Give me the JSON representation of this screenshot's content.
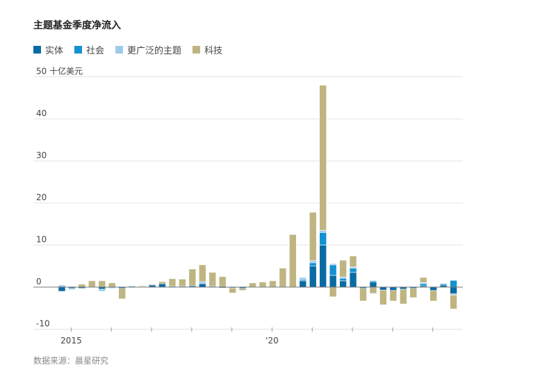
{
  "chart_data": {
    "type": "bar",
    "stacked": true,
    "title": "主题基金季度净流入",
    "unit_label": "十亿美元",
    "source": "数据来源：晨星研究",
    "ylim": [
      -10,
      50
    ],
    "yticks": [
      -10,
      0,
      10,
      20,
      30,
      40,
      50
    ],
    "xtick_labels": [
      {
        "index": 1,
        "label": "2015"
      },
      {
        "index": 21,
        "label": "'20"
      }
    ],
    "colors": {
      "实体": "#0a6ba3",
      "社会": "#1591d3",
      "更广泛的主题": "#9ccbea",
      "科技": "#bfb582"
    },
    "series": [
      {
        "name": "实体",
        "values": [
          -1.0,
          -0.3,
          -0.3,
          0,
          -0.5,
          0,
          -0.3,
          0.2,
          0.1,
          0.5,
          0.8,
          0.2,
          0.2,
          0.3,
          0.8,
          0.2,
          -0.2,
          -0.2,
          -0.3,
          0,
          0,
          0,
          0,
          0,
          1.5,
          5.0,
          10.0,
          2.8,
          1.5,
          3.5,
          -0.3,
          1.2,
          -0.7,
          -0.8,
          -0.5,
          -0.3,
          0.3,
          -0.8,
          0.5,
          -1.6
        ]
      },
      {
        "name": "社会",
        "values": [
          0,
          0,
          0,
          0,
          0,
          0,
          0,
          0,
          0,
          0,
          0,
          0,
          0,
          0,
          0,
          0,
          0,
          0,
          0,
          0,
          0,
          0,
          0,
          0,
          0.3,
          0.8,
          3.0,
          2.5,
          0.6,
          1.0,
          0,
          0.3,
          0,
          0,
          0,
          0,
          0.5,
          0,
          0.3,
          1.6
        ]
      },
      {
        "name": "更广泛的主题",
        "values": [
          0.5,
          -0.3,
          0,
          0,
          -0.5,
          -0.3,
          0,
          0,
          0,
          0,
          0,
          0,
          0,
          0,
          0.5,
          0,
          0,
          0,
          0,
          0,
          0,
          0,
          0,
          0,
          0.5,
          0.5,
          0.5,
          0.3,
          0.3,
          0.3,
          0,
          0,
          0,
          0,
          0,
          0,
          0.3,
          0,
          0,
          -0.3
        ]
      },
      {
        "name": "科技",
        "values": [
          0,
          0,
          0.7,
          1.5,
          1.5,
          1.0,
          -2.5,
          0,
          0.2,
          0.2,
          0.5,
          1.8,
          1.7,
          4.0,
          4.0,
          3.3,
          2.5,
          -1.2,
          -0.5,
          1.0,
          1.2,
          1.5,
          4.5,
          12.5,
          0,
          11.5,
          34.5,
          -2.3,
          4.0,
          2.6,
          -3.0,
          -1.5,
          -3.5,
          -2.5,
          -3.5,
          -2.2,
          1.2,
          -2.5,
          0,
          -3.3
        ]
      }
    ]
  }
}
